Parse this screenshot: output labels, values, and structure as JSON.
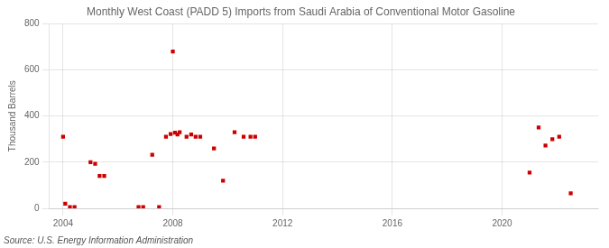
{
  "chart_data": {
    "type": "scatter",
    "title": "Monthly West Coast (PADD 5) Imports from Saudi Arabia of Conventional Motor Gasoline",
    "ylabel": "Thousand Barrels",
    "annotations": [
      "Source: U.S. Energy Information Administration"
    ],
    "color": "#cc0000",
    "marker": "square",
    "grid": true,
    "xlim": [
      2003.5,
      2023.5
    ],
    "ylim": [
      0,
      800
    ],
    "xticks": [
      2004,
      2008,
      2012,
      2016,
      2020
    ],
    "yticks": [
      0,
      200,
      400,
      600,
      800
    ],
    "x": [
      2004.0,
      2004.08,
      2004.25,
      2004.42,
      2005.0,
      2005.17,
      2005.33,
      2005.5,
      2006.75,
      2006.92,
      2007.25,
      2007.5,
      2007.75,
      2007.92,
      2008.0,
      2008.08,
      2008.17,
      2008.25,
      2008.5,
      2008.67,
      2008.83,
      2009.0,
      2009.5,
      2009.83,
      2010.25,
      2010.58,
      2010.83,
      2011.0,
      2021.0,
      2021.33,
      2021.58,
      2021.83,
      2022.08,
      2022.5
    ],
    "values": [
      310,
      20,
      5,
      5,
      200,
      193,
      140,
      140,
      5,
      5,
      232,
      5,
      310,
      322,
      680,
      328,
      320,
      330,
      310,
      320,
      310,
      310,
      260,
      120,
      330,
      310,
      310,
      310,
      155,
      350,
      272,
      300,
      310,
      65
    ]
  }
}
